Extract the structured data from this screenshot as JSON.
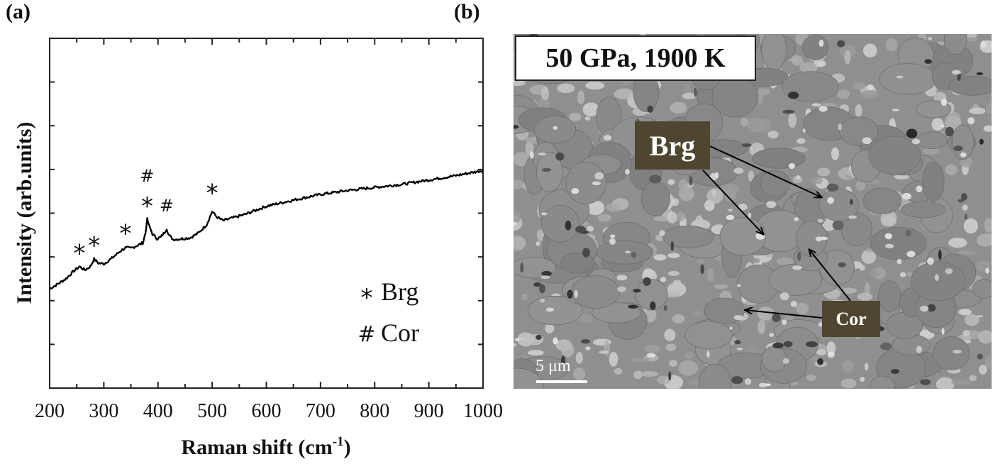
{
  "panels": {
    "a": {
      "label": "(a)"
    },
    "b": {
      "label": "(b)",
      "condition": "50 GPa, 1900 K",
      "phase_labels": {
        "brg": "Brg",
        "cor": "Cor"
      },
      "scale_bar": "5 μm"
    }
  },
  "chart_data": {
    "type": "line",
    "title": "",
    "xlabel": "Raman shift (cm-1)",
    "xlabel_main": "Raman shift (cm",
    "xlabel_sup": "-1",
    "xlabel_close": ")",
    "ylabel": "Intensity (arb.units)",
    "xlim": [
      200,
      1000
    ],
    "ylim": [
      0,
      8
    ],
    "xticks": [
      200,
      300,
      400,
      500,
      600,
      700,
      800,
      900,
      1000
    ],
    "xtick_labels": [
      "200",
      "300",
      "400",
      "500",
      "600",
      "700",
      "800",
      "900",
      "1000"
    ],
    "yticks_labeled": false,
    "grid": false,
    "series": [
      {
        "name": "Raman spectrum",
        "x": [
          200,
          215,
          230,
          245,
          255,
          265,
          275,
          282,
          290,
          300,
          315,
          330,
          340,
          350,
          365,
          372,
          377,
          380,
          384,
          390,
          398,
          405,
          412,
          416,
          420,
          428,
          440,
          460,
          475,
          490,
          500,
          508,
          520,
          540,
          560,
          600,
          650,
          700,
          750,
          800,
          850,
          900,
          950,
          1000
        ],
        "y": [
          2.27,
          2.38,
          2.5,
          2.68,
          2.78,
          2.7,
          2.78,
          2.95,
          2.86,
          2.84,
          2.97,
          3.13,
          3.21,
          3.2,
          3.28,
          3.32,
          3.55,
          3.86,
          3.7,
          3.52,
          3.42,
          3.45,
          3.56,
          3.65,
          3.5,
          3.4,
          3.41,
          3.44,
          3.55,
          3.74,
          4.04,
          3.92,
          3.83,
          3.9,
          3.97,
          4.16,
          4.3,
          4.43,
          4.52,
          4.59,
          4.66,
          4.76,
          4.86,
          4.98
        ]
      }
    ],
    "annotations": [
      {
        "text": "*",
        "x": 255,
        "y": 3.12,
        "phase": "Brg"
      },
      {
        "text": "*",
        "x": 282,
        "y": 3.3,
        "phase": "Brg"
      },
      {
        "text": "*",
        "x": 340,
        "y": 3.58,
        "phase": "Brg"
      },
      {
        "text": "*",
        "x": 380,
        "y": 4.2,
        "phase": "Brg"
      },
      {
        "text": "#",
        "x": 380,
        "y": 4.72,
        "phase": "Cor"
      },
      {
        "text": "#",
        "x": 416,
        "y": 4.04,
        "phase": "Cor"
      },
      {
        "text": "*",
        "x": 500,
        "y": 4.5,
        "phase": "Brg"
      }
    ],
    "legend": {
      "placement": "bottom-right",
      "entries": [
        {
          "symbol": "*",
          "label": "Brg"
        },
        {
          "symbol": "#",
          "label": "Cor"
        }
      ]
    }
  }
}
